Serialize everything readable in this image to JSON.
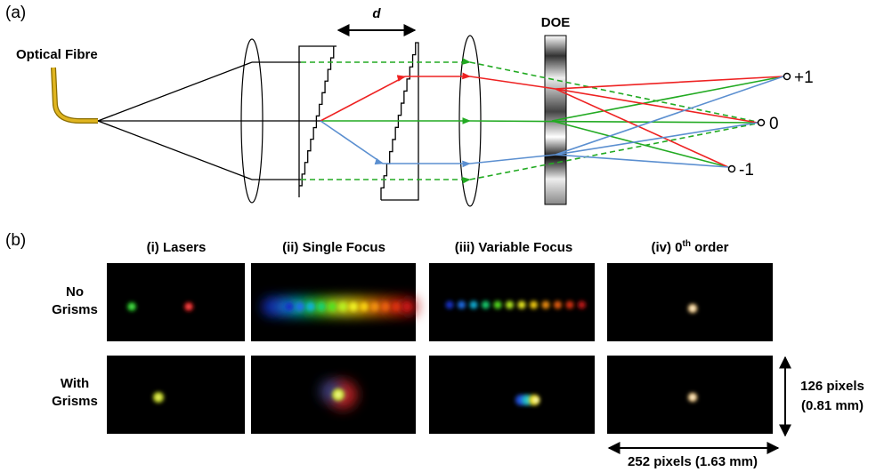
{
  "panel_a": {
    "label": "(a)",
    "fibre_label": "Optical Fibre",
    "separation_label": "d",
    "doe_label": "DOE",
    "orders": [
      "+1",
      "0",
      "-1"
    ]
  },
  "panel_b": {
    "label": "(b)",
    "columns": [
      {
        "text": "(i) Lasers"
      },
      {
        "text": "(ii) Single Focus"
      },
      {
        "text": "(iii) Variable Focus"
      },
      {
        "text": "(iv) 0",
        "sup": "th",
        "suffix": " order"
      }
    ],
    "rows": [
      [
        "No",
        "Grisms"
      ],
      [
        "With",
        "Grisms"
      ]
    ],
    "height_label": [
      "126 pixels",
      "(0.81 mm)"
    ],
    "width_label": "252 pixels (1.63 mm)"
  }
}
